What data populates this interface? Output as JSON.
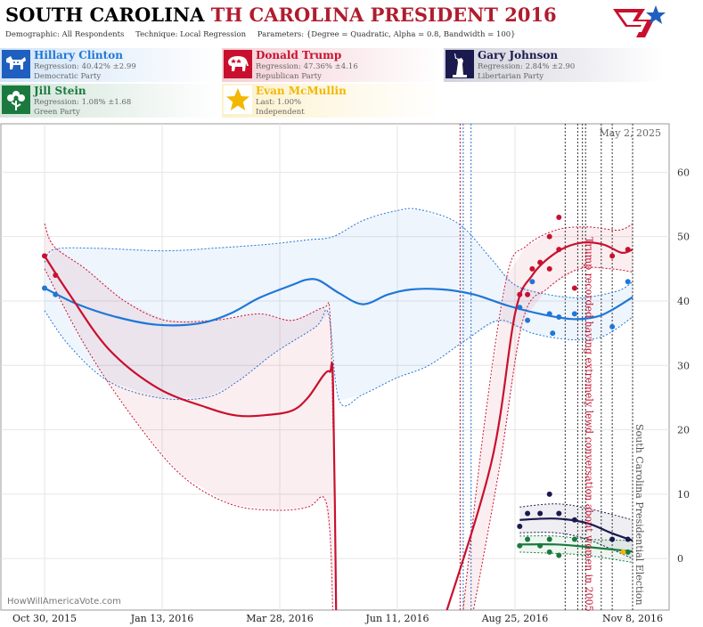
{
  "header": {
    "title_state": "SOUTH CAROLINA",
    "title_rest": "TH CAROLINA PRESIDENT 2016",
    "demographic": "Demographic: All Respondents",
    "technique": "Technique: Local Regression",
    "parameters": "Parameters: {Degree = Quadratic, Alpha = 0.8, Bandwidth = 100}"
  },
  "candidates": [
    {
      "name": "Hillary Clinton",
      "line1": "Regression: 40.42% ±2.99",
      "line2": "Democratic Party",
      "color": "#1f77d8",
      "icon": "donkey-icon"
    },
    {
      "name": "Donald Trump",
      "line1": "Regression: 47.36% ±4.16",
      "line2": "Republican Party",
      "color": "#c8102e",
      "icon": "elephant-icon"
    },
    {
      "name": "Gary Johnson",
      "line1": "Regression: 2.84% ±2.90",
      "line2": "Libertarian Party",
      "color": "#1a1a4e",
      "icon": "liberty-statue-icon"
    },
    {
      "name": "Jill Stein",
      "line1": "Regression: 1.08% ±1.68",
      "line2": "Green Party",
      "color": "#1a7a3e",
      "icon": "flower-icon"
    },
    {
      "name": "Evan McMullin",
      "line1": "Last: 1.00%",
      "line2": "Independent",
      "color": "#f2b800",
      "icon": "star-icon"
    }
  ],
  "chart_data": {
    "type": "line",
    "date_label": "May 2, 2025",
    "source": "HowWillAmericaVote.com",
    "x_ticks": [
      "Oct 30, 2015",
      "Jan 13, 2016",
      "Mar 28, 2016",
      "Jun 11, 2016",
      "Aug 25, 2016",
      "Nov 8, 2016"
    ],
    "x_range": [
      "2015-10-30",
      "2016-11-08"
    ],
    "ylim": [
      -8,
      66
    ],
    "y_ticks": [
      0,
      10,
      20,
      30,
      40,
      50,
      60
    ],
    "grid": true,
    "annotations": [
      {
        "date": "2016-10-07",
        "text": "Trump recorded having extremely lewd conversation about women in 2005",
        "color": "#c8102e"
      },
      {
        "date": "2016-11-08",
        "text": "South Carolina Presidential Election",
        "color": "#555555"
      }
    ],
    "event_lines": [
      {
        "date": "2016-07-21",
        "color": "#c8102e"
      },
      {
        "date": "2016-07-23",
        "color": "#1f77d8"
      },
      {
        "date": "2016-07-28",
        "color": "#1f77d8"
      },
      {
        "date": "2016-09-26",
        "color": "#333333"
      },
      {
        "date": "2016-10-04",
        "color": "#333333"
      },
      {
        "date": "2016-10-07",
        "color": "#333333"
      },
      {
        "date": "2016-10-09",
        "color": "#333333"
      },
      {
        "date": "2016-10-19",
        "color": "#333333"
      },
      {
        "date": "2016-10-26",
        "color": "#333333"
      },
      {
        "date": "2016-11-08",
        "color": "#333333"
      }
    ],
    "series": [
      {
        "name": "Hillary Clinton",
        "color": "#1f77d8",
        "line": [
          [
            "2015-10-30",
            42
          ],
          [
            "2015-11-20",
            39.5
          ],
          [
            "2015-12-15",
            37.5
          ],
          [
            "2016-01-10",
            36.3
          ],
          [
            "2016-02-05",
            36.5
          ],
          [
            "2016-02-25",
            38
          ],
          [
            "2016-03-15",
            40.5
          ],
          [
            "2016-04-05",
            42.5
          ],
          [
            "2016-04-14",
            43.3
          ],
          [
            "2016-04-22",
            43.2
          ],
          [
            "2016-05-05",
            41.2
          ],
          [
            "2016-05-20",
            39.5
          ],
          [
            "2016-06-05",
            41
          ],
          [
            "2016-06-20",
            41.8
          ],
          [
            "2016-07-10",
            41.8
          ],
          [
            "2016-07-30",
            41
          ],
          [
            "2016-08-20",
            39.3
          ],
          [
            "2016-09-10",
            38
          ],
          [
            "2016-09-30",
            37.2
          ],
          [
            "2016-10-15",
            37.5
          ],
          [
            "2016-10-25",
            38.5
          ],
          [
            "2016-11-08",
            40.6
          ]
        ],
        "upper": [
          [
            "2015-10-30",
            46
          ],
          [
            "2015-11-05",
            48
          ],
          [
            "2015-12-01",
            48.2
          ],
          [
            "2016-01-15",
            47.8
          ],
          [
            "2016-02-20",
            48.3
          ],
          [
            "2016-03-20",
            48.8
          ],
          [
            "2016-04-15",
            49.5
          ],
          [
            "2016-05-01",
            50
          ],
          [
            "2016-05-20",
            52.5
          ],
          [
            "2016-06-10",
            54
          ],
          [
            "2016-06-25",
            54.2
          ],
          [
            "2016-07-20",
            52
          ],
          [
            "2016-08-10",
            46.5
          ],
          [
            "2016-08-25",
            42.5
          ],
          [
            "2016-09-15",
            41
          ],
          [
            "2016-10-05",
            40.5
          ],
          [
            "2016-10-20",
            41
          ],
          [
            "2016-11-01",
            41.8
          ],
          [
            "2016-11-08",
            43
          ]
        ],
        "lower": [
          [
            "2015-10-30",
            38.5
          ],
          [
            "2015-11-15",
            33
          ],
          [
            "2015-12-10",
            27.5
          ],
          [
            "2016-01-10",
            25
          ],
          [
            "2016-02-10",
            25
          ],
          [
            "2016-03-01",
            27.5
          ],
          [
            "2016-03-25",
            32
          ],
          [
            "2016-04-20",
            36
          ],
          [
            "2016-04-28",
            38
          ],
          [
            "2016-05-05",
            24.5
          ],
          [
            "2016-05-20",
            25.5
          ],
          [
            "2016-06-10",
            28
          ],
          [
            "2016-07-01",
            30
          ],
          [
            "2016-07-25",
            34
          ],
          [
            "2016-08-15",
            37
          ],
          [
            "2016-09-05",
            35
          ],
          [
            "2016-09-30",
            34
          ],
          [
            "2016-10-20",
            34.5
          ],
          [
            "2016-11-08",
            37.5
          ]
        ],
        "points": [
          [
            "2015-10-30",
            42
          ],
          [
            "2015-11-06",
            41
          ],
          [
            "2016-08-28",
            39
          ],
          [
            "2016-09-02",
            37
          ],
          [
            "2016-09-05",
            43
          ],
          [
            "2016-09-16",
            38
          ],
          [
            "2016-09-18",
            35
          ],
          [
            "2016-09-22",
            37.5
          ],
          [
            "2016-10-02",
            38
          ],
          [
            "2016-10-26",
            36
          ],
          [
            "2016-11-05",
            43
          ]
        ]
      },
      {
        "name": "Donald Trump",
        "color": "#c8102e",
        "line": [
          [
            "2015-10-30",
            47
          ],
          [
            "2015-11-15",
            41
          ],
          [
            "2015-12-10",
            32.5
          ],
          [
            "2016-01-10",
            26.5
          ],
          [
            "2016-02-10",
            23.5
          ],
          [
            "2016-03-01",
            22.2
          ],
          [
            "2016-03-20",
            22.3
          ],
          [
            "2016-04-05",
            23
          ],
          [
            "2016-04-15",
            25
          ],
          [
            "2016-04-25",
            28.5
          ],
          [
            "2016-04-29",
            29
          ],
          [
            "2016-05-01",
            27
          ],
          [
            "2016-05-03",
            -10
          ]
        ],
        "line2": [
          [
            "2016-07-10",
            -10
          ],
          [
            "2016-08-10",
            15
          ],
          [
            "2016-08-25",
            38
          ],
          [
            "2016-09-05",
            44
          ],
          [
            "2016-09-20",
            47.5
          ],
          [
            "2016-10-05",
            49
          ],
          [
            "2016-10-20",
            48.8
          ],
          [
            "2016-11-01",
            47.5
          ],
          [
            "2016-11-08",
            48
          ]
        ],
        "upper": [
          [
            "2015-10-30",
            52
          ],
          [
            "2015-11-05",
            48.5
          ],
          [
            "2015-11-25",
            45
          ],
          [
            "2015-12-20",
            40
          ],
          [
            "2016-01-15",
            37
          ],
          [
            "2016-02-15",
            37
          ],
          [
            "2016-03-15",
            38
          ],
          [
            "2016-04-05",
            37
          ],
          [
            "2016-04-25",
            39
          ],
          [
            "2016-04-29",
            38
          ],
          [
            "2016-05-01",
            20
          ]
        ],
        "lower": [
          [
            "2015-10-30",
            45
          ],
          [
            "2015-11-25",
            33
          ],
          [
            "2015-12-25",
            22
          ],
          [
            "2016-01-25",
            13
          ],
          [
            "2016-02-25",
            8.5
          ],
          [
            "2016-03-25",
            7.5
          ],
          [
            "2016-04-15",
            8
          ],
          [
            "2016-04-25",
            9.5
          ],
          [
            "2016-04-29",
            4
          ],
          [
            "2016-05-01",
            -10
          ]
        ],
        "upper2": [
          [
            "2016-07-22",
            -10
          ],
          [
            "2016-08-05",
            20
          ],
          [
            "2016-08-20",
            44
          ],
          [
            "2016-09-01",
            48.5
          ],
          [
            "2016-09-20",
            51
          ],
          [
            "2016-10-10",
            51.5
          ],
          [
            "2016-10-30",
            51
          ],
          [
            "2016-11-08",
            52
          ]
        ],
        "lower2": [
          [
            "2016-07-28",
            -10
          ],
          [
            "2016-08-15",
            14
          ],
          [
            "2016-08-30",
            37
          ],
          [
            "2016-09-15",
            42
          ],
          [
            "2016-10-05",
            45
          ],
          [
            "2016-10-25",
            45
          ],
          [
            "2016-11-08",
            44.5
          ]
        ],
        "points": [
          [
            "2015-10-30",
            47
          ],
          [
            "2015-11-06",
            44
          ],
          [
            "2016-08-28",
            41
          ],
          [
            "2016-09-02",
            41
          ],
          [
            "2016-09-05",
            45
          ],
          [
            "2016-09-10",
            46
          ],
          [
            "2016-09-16",
            50
          ],
          [
            "2016-09-16",
            45
          ],
          [
            "2016-09-22",
            48
          ],
          [
            "2016-09-22",
            53
          ],
          [
            "2016-10-02",
            42
          ],
          [
            "2016-10-26",
            47
          ],
          [
            "2016-11-05",
            48
          ]
        ]
      },
      {
        "name": "Gary Johnson",
        "color": "#1a1a4e",
        "line": [
          [
            "2016-08-28",
            6
          ],
          [
            "2016-09-20",
            6.2
          ],
          [
            "2016-10-10",
            5.5
          ],
          [
            "2016-10-25",
            4
          ],
          [
            "2016-11-08",
            2.8
          ]
        ],
        "upper": [
          [
            "2016-08-28",
            8
          ],
          [
            "2016-09-20",
            8.5
          ],
          [
            "2016-10-10",
            7.8
          ],
          [
            "2016-11-08",
            6
          ]
        ],
        "lower": [
          [
            "2016-08-28",
            4
          ],
          [
            "2016-09-20",
            4
          ],
          [
            "2016-10-10",
            3
          ],
          [
            "2016-11-08",
            0
          ]
        ],
        "points": [
          [
            "2016-08-28",
            5
          ],
          [
            "2016-09-02",
            7
          ],
          [
            "2016-09-10",
            7
          ],
          [
            "2016-09-16",
            10
          ],
          [
            "2016-09-22",
            7
          ],
          [
            "2016-10-02",
            6
          ],
          [
            "2016-10-26",
            3
          ],
          [
            "2016-11-05",
            3
          ]
        ]
      },
      {
        "name": "Jill Stein",
        "color": "#1a7a3e",
        "line": [
          [
            "2016-08-28",
            2.2
          ],
          [
            "2016-09-20",
            2.2
          ],
          [
            "2016-10-10",
            1.8
          ],
          [
            "2016-11-08",
            1.1
          ]
        ],
        "upper": [
          [
            "2016-08-28",
            3.5
          ],
          [
            "2016-09-20",
            3.5
          ],
          [
            "2016-10-10",
            3
          ],
          [
            "2016-11-08",
            2.8
          ]
        ],
        "lower": [
          [
            "2016-08-28",
            1
          ],
          [
            "2016-09-20",
            0.8
          ],
          [
            "2016-10-10",
            0.5
          ],
          [
            "2016-11-08",
            -0.6
          ]
        ],
        "points": [
          [
            "2016-08-28",
            2
          ],
          [
            "2016-09-02",
            3
          ],
          [
            "2016-09-10",
            2
          ],
          [
            "2016-09-16",
            3
          ],
          [
            "2016-09-16",
            1
          ],
          [
            "2016-09-22",
            0.5
          ],
          [
            "2016-10-02",
            3
          ],
          [
            "2016-11-05",
            1
          ]
        ]
      },
      {
        "name": "Evan McMullin",
        "color": "#f2b800",
        "points": [
          [
            "2016-11-02",
            1
          ]
        ]
      }
    ]
  }
}
